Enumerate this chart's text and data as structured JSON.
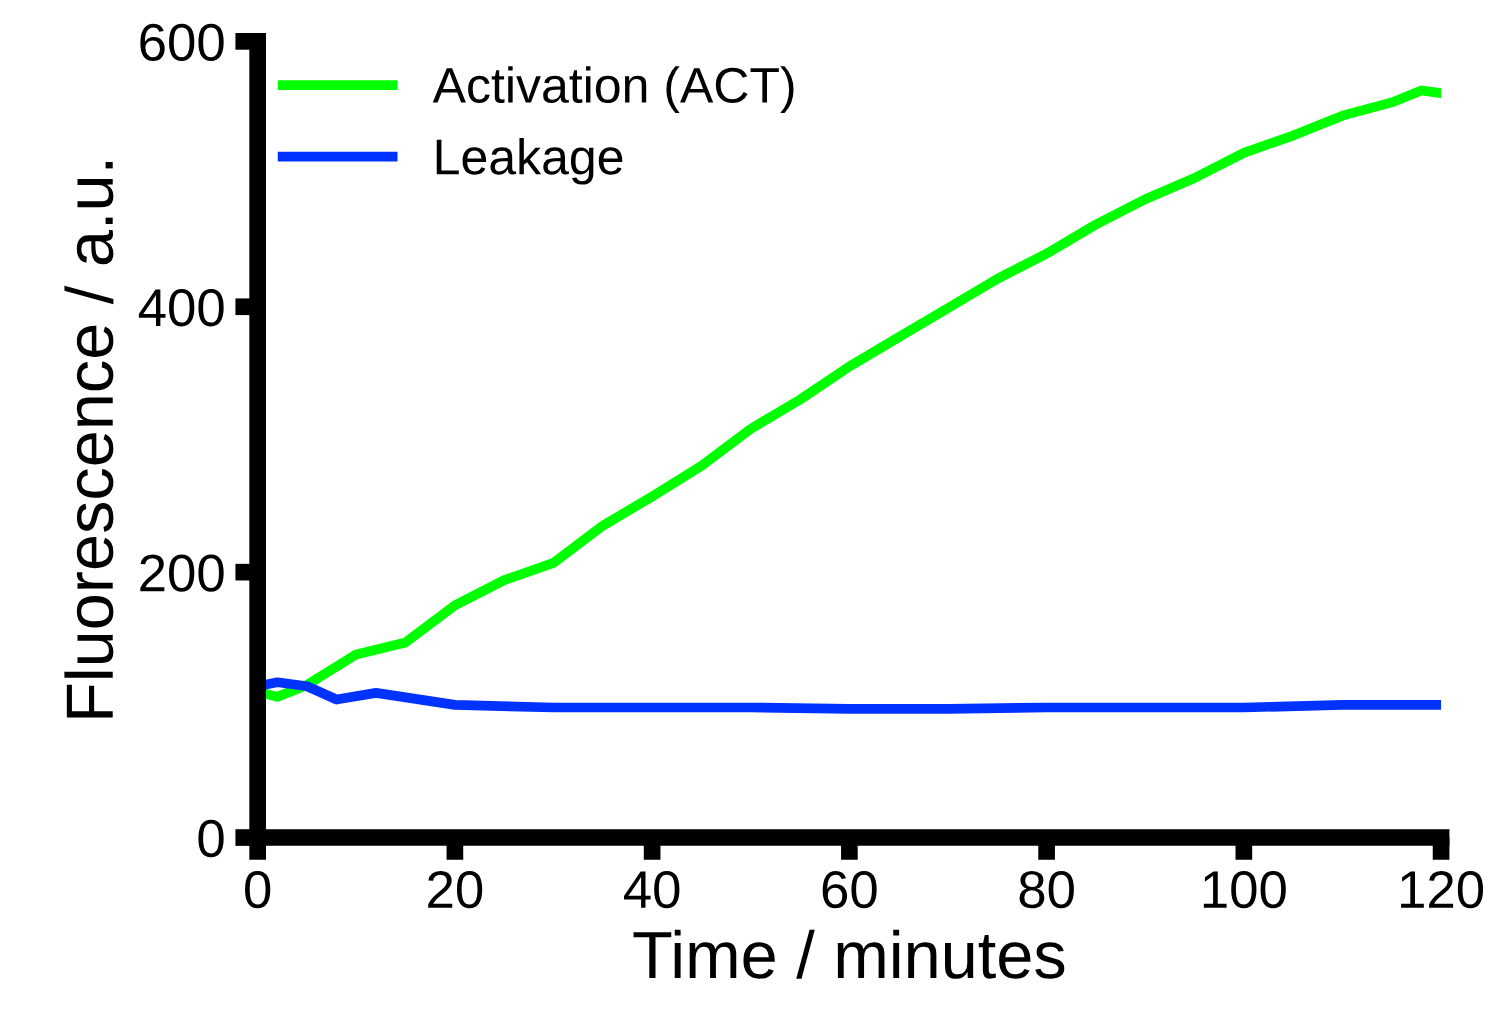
{
  "chart_data": {
    "type": "line",
    "xlabel": "Time / minutes",
    "ylabel": "Fluorescence / a.u.",
    "xlim": [
      0,
      120
    ],
    "xticks": [
      0,
      20,
      40,
      60,
      80,
      100,
      120
    ],
    "ylim": [
      0,
      600
    ],
    "yticks": [
      0,
      200,
      400,
      600
    ],
    "grid": false,
    "legend": "top left",
    "marker": "none",
    "line_style": "solid",
    "series": [
      {
        "name": "Activation (ACT)",
        "color": "#00ff00",
        "x": [
          0,
          2,
          5,
          10,
          15,
          20,
          25,
          30,
          35,
          40,
          45,
          50,
          55,
          60,
          65,
          70,
          75,
          80,
          85,
          90,
          95,
          100,
          105,
          110,
          115,
          118,
          120
        ],
        "values": [
          110,
          106,
          115,
          138,
          147,
          175,
          194,
          207,
          235,
          257,
          280,
          308,
          330,
          355,
          377,
          399,
          421,
          440,
          462,
          481,
          497,
          516,
          529,
          544,
          554,
          563,
          561
        ]
      },
      {
        "name": "Leakage",
        "color": "#0033ff",
        "x": [
          0,
          2,
          5,
          8,
          12,
          20,
          30,
          40,
          50,
          60,
          70,
          80,
          90,
          100,
          110,
          120
        ],
        "values": [
          114,
          117,
          114,
          104,
          109,
          100,
          98,
          98,
          98,
          97,
          97,
          98,
          98,
          98,
          100,
          100
        ]
      }
    ]
  }
}
